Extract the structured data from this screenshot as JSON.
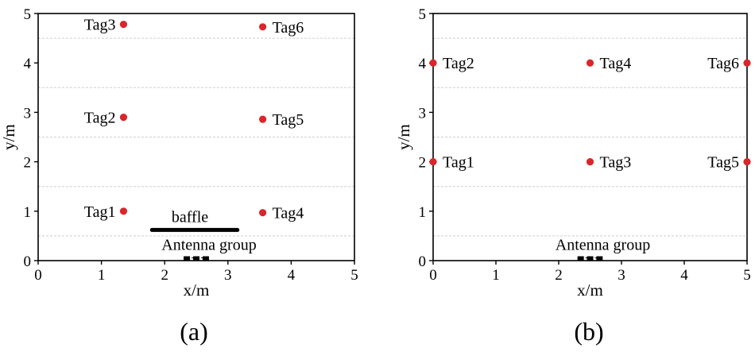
{
  "chart_data": [
    {
      "type": "scatter",
      "caption": "(a)",
      "xlabel": "x/m",
      "ylabel": "y/m",
      "xlim": [
        0,
        5
      ],
      "ylim": [
        0,
        5
      ],
      "x_ticks": [
        "0",
        "1",
        "2",
        "3",
        "4",
        "5"
      ],
      "y_ticks": [
        "0",
        "1",
        "2",
        "3",
        "4",
        "5"
      ],
      "grid": "horizontal dashed",
      "marker_color": "#d9262a",
      "points": [
        {
          "label": "Tag1",
          "x": 1.35,
          "y": 1.0,
          "label_side": "left"
        },
        {
          "label": "Tag2",
          "x": 1.35,
          "y": 2.9,
          "label_side": "left"
        },
        {
          "label": "Tag3",
          "x": 1.35,
          "y": 4.78,
          "label_side": "left"
        },
        {
          "label": "Tag4",
          "x": 3.55,
          "y": 0.97,
          "label_side": "right"
        },
        {
          "label": "Tag5",
          "x": 3.55,
          "y": 2.86,
          "label_side": "right"
        },
        {
          "label": "Tag6",
          "x": 3.55,
          "y": 4.73,
          "label_side": "right"
        }
      ],
      "baffle": {
        "label": "baffle",
        "x_start": 1.8,
        "x_end": 3.15,
        "y": 0.62
      },
      "antenna_group": {
        "label": "Antenna group",
        "x": [
          2.35,
          2.5,
          2.65
        ],
        "y": 0.04
      }
    },
    {
      "type": "scatter",
      "caption": "(b)",
      "xlabel": "x/m",
      "ylabel": "y/m",
      "xlim": [
        0,
        5
      ],
      "ylim": [
        0,
        5
      ],
      "x_ticks": [
        "0",
        "1",
        "2",
        "3",
        "4",
        "5"
      ],
      "y_ticks": [
        "0",
        "1",
        "2",
        "3",
        "4",
        "5"
      ],
      "grid": "horizontal dashed",
      "marker_color": "#d9262a",
      "points": [
        {
          "label": "Tag1",
          "x": 0.0,
          "y": 2.0,
          "label_side": "right"
        },
        {
          "label": "Tag2",
          "x": 0.0,
          "y": 4.0,
          "label_side": "right"
        },
        {
          "label": "Tag3",
          "x": 2.5,
          "y": 2.0,
          "label_side": "right"
        },
        {
          "label": "Tag4",
          "x": 2.5,
          "y": 4.0,
          "label_side": "right"
        },
        {
          "label": "Tag5",
          "x": 5.0,
          "y": 2.0,
          "label_side": "left"
        },
        {
          "label": "Tag6",
          "x": 5.0,
          "y": 4.0,
          "label_side": "left"
        }
      ],
      "antenna_group": {
        "label": "Antenna group",
        "x": [
          2.35,
          2.5,
          2.65
        ],
        "y": 0.04
      }
    }
  ]
}
